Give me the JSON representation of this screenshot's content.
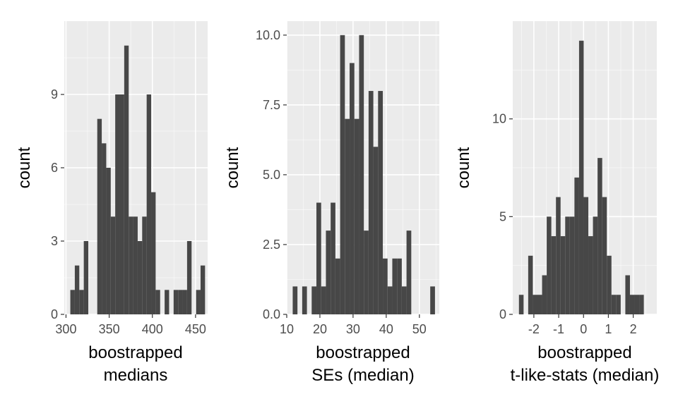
{
  "colors": {
    "panel_background": "#ebebeb",
    "grid_major": "#ffffff",
    "bar_fill": "#474747",
    "tick_text": "#4d4d4d",
    "axis_text": "#000000"
  },
  "chart_data": [
    {
      "type": "bar",
      "title": "",
      "xlabel_lines": [
        "boostrapped",
        "medians"
      ],
      "ylabel": "count",
      "grid": true,
      "xlim": [
        298,
        464
      ],
      "ylim": [
        0,
        12
      ],
      "xticks": [
        300,
        350,
        400,
        450
      ],
      "yticks": [
        0,
        3,
        6,
        9
      ],
      "ytick_labels": [
        "0",
        "3",
        "6",
        "9"
      ],
      "bin_start": 305,
      "bin_width": 5.2,
      "counts": [
        1,
        2,
        1,
        3,
        0,
        0,
        8,
        7,
        6,
        4,
        9,
        9,
        11,
        4,
        4,
        3,
        4,
        9,
        5,
        1,
        0,
        1,
        0,
        1,
        1,
        1,
        3,
        0,
        1,
        2
      ]
    },
    {
      "type": "bar",
      "title": "",
      "xlabel_lines": [
        "boostrapped",
        "SEs (median)"
      ],
      "ylabel": "count",
      "grid": true,
      "xlim": [
        10,
        56
      ],
      "ylim": [
        0,
        10.5
      ],
      "xticks": [
        10,
        20,
        30,
        40,
        50
      ],
      "yticks": [
        0,
        2.5,
        5,
        7.5,
        10
      ],
      "ytick_labels": [
        "0.0",
        "2.5",
        "5.0",
        "7.5",
        "10.0"
      ],
      "bin_start": 11.8,
      "bin_width": 1.43,
      "counts": [
        1,
        0,
        1,
        0,
        1,
        4,
        1,
        3,
        4,
        2,
        10,
        7,
        9,
        7,
        10,
        3,
        8,
        6,
        8,
        2,
        1,
        2,
        2,
        1,
        3,
        0,
        0,
        0,
        0,
        1
      ]
    },
    {
      "type": "bar",
      "title": "",
      "xlabel_lines": [
        "boostrapped",
        "t-like-stats (median)"
      ],
      "ylabel": "count",
      "grid": true,
      "xlim": [
        -2.85,
        2.95
      ],
      "ylim": [
        0,
        15
      ],
      "xticks": [
        -2,
        -1,
        0,
        1,
        2
      ],
      "yticks": [
        0,
        5,
        10
      ],
      "ytick_labels": [
        "0",
        "5",
        "10"
      ],
      "bin_start": -2.6,
      "bin_width": 0.1862,
      "counts": [
        1,
        0,
        3,
        1,
        1,
        2,
        5,
        4,
        6,
        4,
        5,
        5,
        7,
        14,
        6,
        4,
        5,
        8,
        6,
        3,
        1,
        1,
        0,
        2,
        1,
        1,
        1,
        0,
        0,
        0
      ]
    }
  ]
}
